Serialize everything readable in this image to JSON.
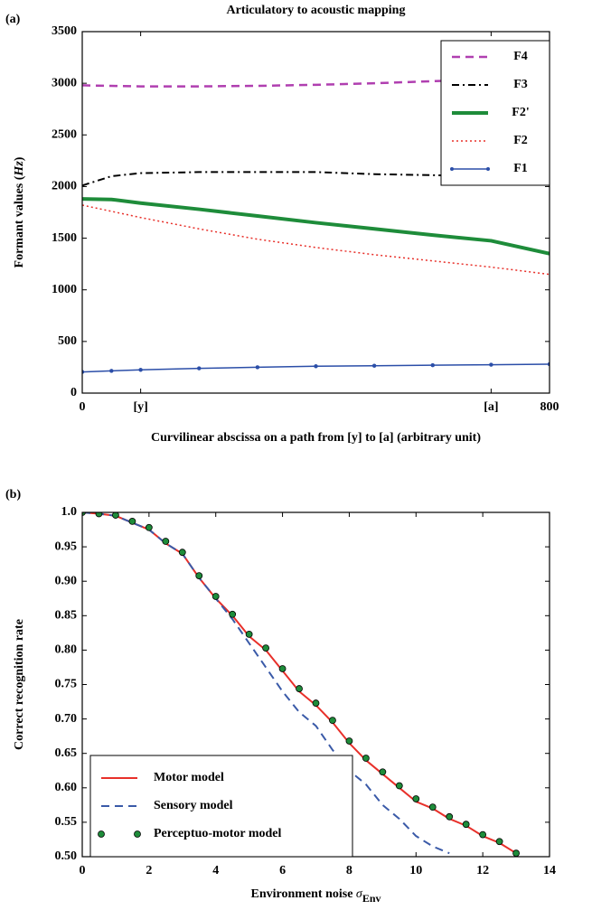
{
  "chart_data": [
    {
      "type": "line",
      "panel_label": "(a)",
      "title": "Articulatory to acoustic mapping",
      "xlabel": "Curvilinear abscissa on a path from [y] to [a] (arbitrary unit)",
      "ylabel": {
        "text": "Formant values (",
        "unit": "Hz",
        "close": ")"
      },
      "x": [
        0,
        50,
        100,
        200,
        300,
        400,
        500,
        600,
        700,
        800
      ],
      "xlim": [
        0,
        800
      ],
      "xticks": [
        0,
        {
          "value": 100,
          "label": "[y]"
        },
        {
          "value": 700,
          "label": "[a]"
        },
        800
      ],
      "ylim": [
        0,
        3500
      ],
      "yticks": [
        0,
        500,
        1000,
        1500,
        2000,
        2500,
        3000,
        3500
      ],
      "legend": "upper right",
      "series": [
        {
          "name": "F4",
          "color": "#b03fb0",
          "linestyle": "dashed",
          "width": 2.5,
          "values": [
            2980,
            2975,
            2970,
            2970,
            2975,
            2985,
            3000,
            3020,
            3040,
            3070
          ]
        },
        {
          "name": "F3",
          "color": "#000000",
          "linestyle": "dashdot",
          "width": 2,
          "values": [
            2010,
            2100,
            2130,
            2140,
            2140,
            2140,
            2120,
            2110,
            2100,
            2090
          ]
        },
        {
          "name": "F2'",
          "color": "#1e8c3a",
          "linestyle": "solid",
          "width": 4,
          "values": [
            1880,
            1875,
            1840,
            1780,
            1715,
            1650,
            1590,
            1530,
            1475,
            1350
          ]
        },
        {
          "name": "F2",
          "color": "#e8302a",
          "linestyle": "dotted",
          "width": 1.5,
          "values": [
            1820,
            1760,
            1700,
            1590,
            1490,
            1410,
            1340,
            1280,
            1220,
            1150
          ]
        },
        {
          "name": "F1",
          "color": "#2b4ea8",
          "linestyle": "solid",
          "marker": "circle",
          "width": 1.5,
          "values": [
            205,
            215,
            225,
            240,
            250,
            260,
            265,
            270,
            275,
            280
          ]
        }
      ]
    },
    {
      "type": "line",
      "panel_label": "(b)",
      "xlabel": {
        "text": "Environment noise ",
        "symbol": "σ",
        "subscript": "Env"
      },
      "ylabel": "Correct recognition rate",
      "x": [
        0,
        0.5,
        1,
        1.5,
        2,
        2.5,
        3,
        3.5,
        4,
        4.5,
        5,
        5.5,
        6,
        6.5,
        7,
        7.5,
        8,
        8.5,
        9,
        9.5,
        10,
        10.5,
        11,
        11.5,
        12,
        12.5,
        13
      ],
      "xlim": [
        0,
        14
      ],
      "xticks": [
        0,
        2,
        4,
        6,
        8,
        10,
        12,
        14
      ],
      "ylim": [
        0.5,
        1.0
      ],
      "yticks": [
        {
          "value": 0.5,
          "label": "0.50"
        },
        0.55,
        {
          "value": 0.6,
          "label": "0.60"
        },
        0.65,
        {
          "value": 0.7,
          "label": "0.70"
        },
        0.75,
        {
          "value": 0.8,
          "label": "0.80"
        },
        0.85,
        {
          "value": 0.9,
          "label": "0.90"
        },
        0.95,
        {
          "value": 1.0,
          "label": "1.0"
        }
      ],
      "legend": "lower left",
      "series": [
        {
          "name": "Motor model",
          "color": "#e8302a",
          "linestyle": "solid",
          "width": 2,
          "values": [
            1.0,
            0.998,
            0.995,
            0.985,
            0.975,
            0.955,
            0.94,
            0.905,
            0.875,
            0.85,
            0.82,
            0.8,
            0.77,
            0.74,
            0.72,
            0.695,
            0.665,
            0.64,
            0.62,
            0.6,
            0.58,
            0.57,
            0.555,
            0.545,
            0.53,
            0.52,
            0.505
          ]
        },
        {
          "name": "Sensory model",
          "color": "#3a5aa8",
          "linestyle": "dashed",
          "width": 2,
          "values": [
            1.0,
            0.998,
            0.995,
            0.985,
            0.975,
            0.955,
            0.94,
            0.905,
            0.875,
            0.845,
            0.81,
            0.775,
            0.74,
            0.71,
            0.69,
            0.655,
            0.625,
            0.605,
            0.575,
            0.555,
            0.53,
            0.515,
            0.505,
            null,
            null,
            null,
            null
          ]
        },
        {
          "name": "Perceptuo-motor model",
          "color": "#1e8c3a",
          "linestyle": "none",
          "marker": "dot",
          "width": 0,
          "values": [
            1.0,
            0.998,
            0.996,
            0.987,
            0.978,
            0.958,
            0.942,
            0.908,
            0.878,
            0.852,
            0.823,
            0.803,
            0.773,
            0.744,
            0.723,
            0.698,
            0.668,
            0.643,
            0.623,
            0.603,
            0.584,
            0.572,
            0.558,
            0.547,
            0.532,
            0.522,
            0.505
          ]
        }
      ]
    }
  ]
}
